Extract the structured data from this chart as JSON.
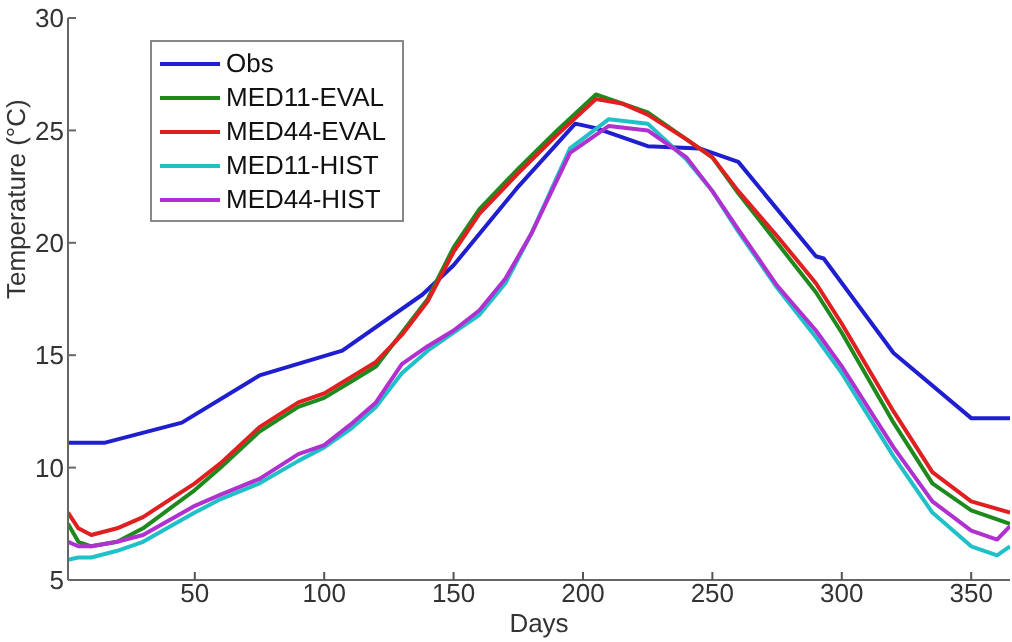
{
  "chart_data": {
    "type": "line",
    "xlabel": "Days",
    "ylabel": "Temperature (°C)",
    "xlim": [
      1,
      365
    ],
    "xticks": [
      50,
      100,
      150,
      200,
      250,
      300,
      350
    ],
    "ylim": [
      5,
      30
    ],
    "yticks": [
      5,
      10,
      15,
      20,
      25,
      30
    ],
    "grid": false,
    "legend": "top left",
    "marker": "none",
    "line_style": "solid",
    "series": [
      {
        "name": "Obs",
        "color": "#1f1fd0",
        "x": [
          1,
          15,
          45,
          75,
          107,
          138,
          150,
          175,
          197,
          205,
          225,
          245,
          260,
          290,
          293,
          320,
          350,
          365
        ],
        "values": [
          11.1,
          11.1,
          12,
          14.1,
          15.2,
          17.7,
          19,
          22.5,
          25.3,
          25.1,
          24.3,
          24.2,
          23.6,
          19.4,
          19.3,
          15.1,
          12.2,
          12.2
        ]
      },
      {
        "name": "MED11-EVAL",
        "color": "#1e8a1e",
        "x": [
          1,
          5,
          10,
          20,
          30,
          50,
          60,
          75,
          90,
          100,
          110,
          120,
          130,
          140,
          150,
          160,
          175,
          190,
          205,
          215,
          225,
          240,
          250,
          260,
          275,
          290,
          300,
          320,
          335,
          350,
          365
        ],
        "values": [
          7.5,
          6.7,
          6.5,
          6.7,
          7.3,
          9,
          10,
          11.6,
          12.7,
          13.1,
          13.8,
          14.5,
          16,
          17.5,
          19.8,
          21.5,
          23.3,
          25,
          26.6,
          26.2,
          25.8,
          24.6,
          23.8,
          22.2,
          20,
          17.8,
          16,
          12,
          9.3,
          8.1,
          7.5
        ]
      },
      {
        "name": "MED44-EVAL",
        "color": "#e02020",
        "x": [
          1,
          5,
          10,
          20,
          30,
          50,
          60,
          75,
          90,
          100,
          110,
          120,
          130,
          140,
          150,
          160,
          175,
          190,
          205,
          215,
          225,
          240,
          250,
          260,
          275,
          290,
          300,
          320,
          335,
          350,
          365
        ],
        "values": [
          8,
          7.3,
          7,
          7.3,
          7.8,
          9.3,
          10.2,
          11.8,
          12.9,
          13.3,
          14,
          14.7,
          15.9,
          17.4,
          19.6,
          21.3,
          23.1,
          24.8,
          26.4,
          26.2,
          25.7,
          24.6,
          23.8,
          22.3,
          20.3,
          18.2,
          16.4,
          12.5,
          9.8,
          8.5,
          8
        ]
      },
      {
        "name": "MED11-HIST",
        "color": "#20c0c8",
        "x": [
          1,
          5,
          10,
          20,
          30,
          50,
          60,
          75,
          90,
          100,
          110,
          120,
          130,
          140,
          150,
          160,
          170,
          180,
          195,
          210,
          225,
          240,
          250,
          260,
          275,
          290,
          300,
          320,
          335,
          350,
          360,
          365
        ],
        "values": [
          5.9,
          6,
          6,
          6.3,
          6.7,
          8,
          8.6,
          9.3,
          10.3,
          10.9,
          11.7,
          12.7,
          14.2,
          15.2,
          16,
          16.8,
          18.2,
          20.4,
          24.2,
          25.5,
          25.3,
          23.7,
          22.3,
          20.5,
          18,
          15.8,
          14.2,
          10.5,
          8,
          6.5,
          6.1,
          6.5
        ]
      },
      {
        "name": "MED44-HIST",
        "color": "#b030d0",
        "x": [
          1,
          5,
          10,
          20,
          30,
          50,
          60,
          75,
          90,
          100,
          110,
          120,
          130,
          140,
          150,
          160,
          170,
          180,
          195,
          210,
          225,
          240,
          250,
          260,
          275,
          290,
          300,
          320,
          335,
          350,
          360,
          365
        ],
        "values": [
          6.7,
          6.5,
          6.5,
          6.7,
          7,
          8.3,
          8.8,
          9.5,
          10.6,
          11,
          11.9,
          12.9,
          14.6,
          15.4,
          16.1,
          17,
          18.4,
          20.4,
          24,
          25.2,
          25,
          23.8,
          22.3,
          20.6,
          18.1,
          16.1,
          14.5,
          10.9,
          8.5,
          7.2,
          6.8,
          7.4
        ]
      }
    ]
  }
}
